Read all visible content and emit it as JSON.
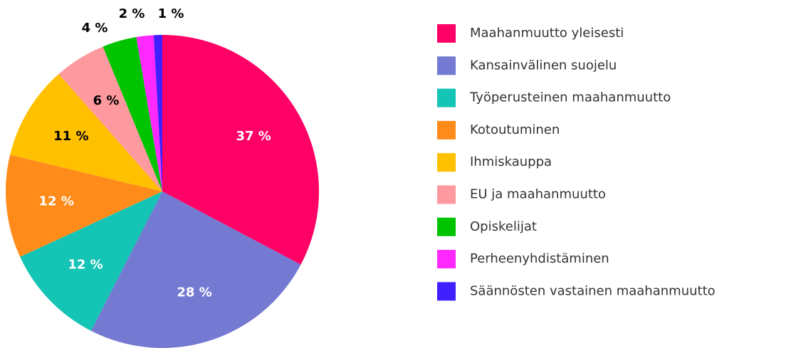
{
  "chart_data": {
    "type": "pie",
    "categories": [
      "Maahanmuutto yleisesti",
      "Kansainvälinen suojelu",
      "Työperusteinen maahanmuutto",
      "Kotoutuminen",
      "Ihmiskauppa",
      "EU ja maahanmuutto",
      "Opiskelijat",
      "Perheenyhdistäminen",
      "Säännösten vastainen maahanmuutto"
    ],
    "values": [
      37,
      28,
      12,
      12,
      11,
      6,
      4,
      2,
      1
    ],
    "value_labels": [
      "37 %",
      "28 %",
      "12 %",
      "12 %",
      "11 %",
      "6 %",
      "4 %",
      "2 %",
      "1 %"
    ],
    "colors": [
      "#ff0066",
      "#7479d2",
      "#14c4b4",
      "#ff8c1a",
      "#ffc000",
      "#ff99a0",
      "#00c400",
      "#ff28ff",
      "#4020ff"
    ],
    "label_colors": [
      "#ffffff",
      "#ffffff",
      "#ffffff",
      "#ffffff",
      "#000000",
      "#000000",
      "#000000",
      "#000000",
      "#000000"
    ],
    "legend": "right"
  }
}
